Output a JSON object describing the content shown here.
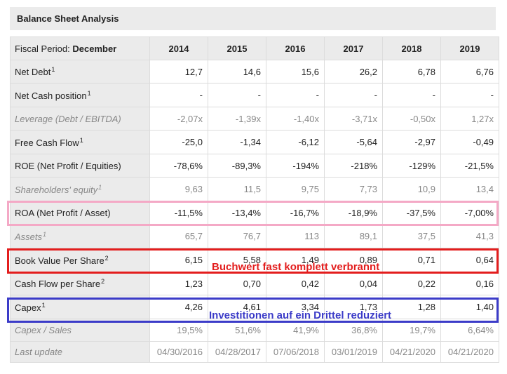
{
  "title": "Balance Sheet Analysis",
  "header": {
    "label_prefix": "Fiscal Period: ",
    "label_bold": "December",
    "years": [
      "2014",
      "2015",
      "2016",
      "2017",
      "2018",
      "2019"
    ]
  },
  "rows": [
    {
      "label": "Net Debt",
      "sup": "1",
      "values": [
        "12,7",
        "14,6",
        "15,6",
        "26,2",
        "6,78",
        "6,76"
      ]
    },
    {
      "label": "Net Cash position",
      "sup": "1",
      "values": [
        "-",
        "-",
        "-",
        "-",
        "-",
        "-"
      ]
    },
    {
      "label": "Leverage (Debt / EBITDA)",
      "sup": "",
      "values": [
        "-2,07x",
        "-1,39x",
        "-1,40x",
        "-3,71x",
        "-0,50x",
        "1,27x"
      ]
    },
    {
      "label": "Free Cash Flow",
      "sup": "1",
      "values": [
        "-25,0",
        "-1,34",
        "-6,12",
        "-5,64",
        "-2,97",
        "-0,49"
      ]
    },
    {
      "label": "ROE (Net Profit / Equities)",
      "sup": "",
      "values": [
        "-78,6%",
        "-89,3%",
        "-194%",
        "-218%",
        "-129%",
        "-21,5%"
      ]
    },
    {
      "label": "Shareholders' equity",
      "sup": "1",
      "values": [
        "9,63",
        "11,5",
        "9,75",
        "7,73",
        "10,9",
        "13,4"
      ]
    },
    {
      "label": "ROA (Net Profit / Asset)",
      "sup": "",
      "values": [
        "-11,5%",
        "-13,4%",
        "-16,7%",
        "-18,9%",
        "-37,5%",
        "-7,00%"
      ]
    },
    {
      "label": "Assets",
      "sup": "1",
      "values": [
        "65,7",
        "76,7",
        "113",
        "89,1",
        "37,5",
        "41,3"
      ]
    },
    {
      "label": "Book Value Per Share",
      "sup": "2",
      "values": [
        "6,15",
        "5,58",
        "1,49",
        "0,89",
        "0,71",
        "0,64"
      ]
    },
    {
      "label": "Cash Flow per Share",
      "sup": "2",
      "values": [
        "1,23",
        "0,70",
        "0,42",
        "0,04",
        "0,22",
        "0,16"
      ]
    },
    {
      "label": "Capex",
      "sup": "1",
      "values": [
        "4,26",
        "4,61",
        "3,34",
        "1,73",
        "1,28",
        "1,40"
      ]
    },
    {
      "label": "Capex / Sales",
      "sup": "",
      "values": [
        "19,5%",
        "51,6%",
        "41,9%",
        "36,8%",
        "19,7%",
        "6,64%"
      ]
    },
    {
      "label": "Last update",
      "sup": "",
      "values": [
        "04/30/2016",
        "04/28/2017",
        "07/06/2018",
        "03/01/2019",
        "04/21/2020",
        "04/21/2020"
      ]
    }
  ],
  "annotations": {
    "red_note": "Buchwert fast komplett verbrannt",
    "blue_note": "Investitionen auf ein Drittel reduziert"
  },
  "colors": {
    "pink_highlight": "#f4a9c6",
    "red_highlight": "#e31d1d",
    "blue_highlight": "#3b3bc8"
  }
}
